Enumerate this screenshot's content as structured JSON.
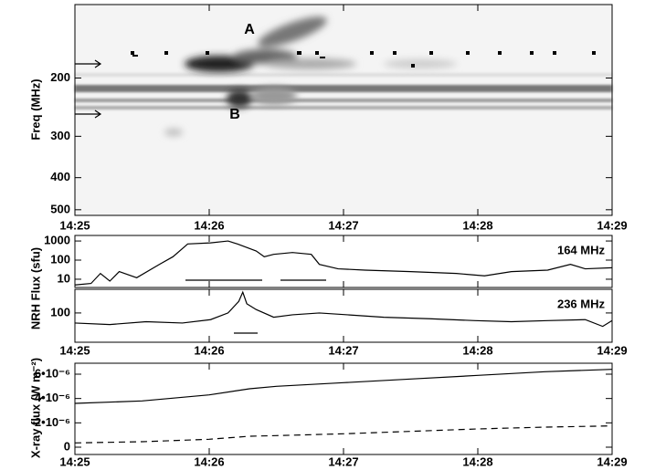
{
  "chart_data": [
    {
      "type": "spectrogram",
      "ylabel": "Freq (MHz)",
      "ylog": true,
      "y_inverted": true,
      "ylim": [
        120,
        520
      ],
      "yticks": [
        200,
        300,
        400,
        500
      ],
      "xlim": [
        865,
        869
      ],
      "xticks": [
        {
          "value": 865,
          "label": "14:25"
        },
        {
          "value": 866,
          "label": "14:26"
        },
        {
          "value": 867,
          "label": "14:27"
        },
        {
          "value": 868,
          "label": "14:28"
        },
        {
          "value": 869,
          "label": "14:29"
        }
      ],
      "annotations": [
        "A",
        "B"
      ]
    },
    {
      "type": "line",
      "ylabel": "NRH Flux (sfu)",
      "ylog": true,
      "channel": "164 MHz",
      "ylim": [
        3.7,
        1950
      ],
      "yticks": [
        10,
        100,
        1000
      ],
      "xlim": [
        865,
        869
      ],
      "xticks": [
        865,
        866,
        867,
        868,
        869
      ],
      "x": [
        865.0,
        865.12,
        865.19,
        865.26,
        865.33,
        865.46,
        865.63,
        865.73,
        865.84,
        866.01,
        866.14,
        866.21,
        866.35,
        866.41,
        866.48,
        866.62,
        866.76,
        866.82,
        866.96,
        867.16,
        867.5,
        867.84,
        868.05,
        868.25,
        868.52,
        868.69,
        868.8,
        869.0
      ],
      "series": [
        {
          "color": "#000000",
          "dash": "solid",
          "values": [
            5,
            6,
            20,
            8,
            25,
            12,
            60,
            150,
            700,
            800,
            1000,
            700,
            300,
            150,
            200,
            250,
            200,
            60,
            35,
            30,
            25,
            20,
            15,
            25,
            30,
            60,
            35,
            40
          ]
        }
      ]
    },
    {
      "type": "line",
      "ylog": true,
      "channel": "236 MHz",
      "ylim": [
        3,
        1700
      ],
      "yticks": [
        100
      ],
      "xlim": [
        865,
        869
      ],
      "xticks": [
        {
          "value": 865,
          "label": "14:25"
        },
        {
          "value": 866,
          "label": "14:26"
        },
        {
          "value": 867,
          "label": "14:27"
        },
        {
          "value": 868,
          "label": "14:28"
        },
        {
          "value": 869,
          "label": "14:29"
        }
      ],
      "x": [
        865.0,
        865.26,
        865.53,
        865.8,
        866.01,
        866.14,
        866.22,
        866.25,
        866.28,
        866.35,
        866.48,
        866.62,
        866.82,
        867.03,
        867.3,
        867.64,
        867.98,
        868.25,
        868.52,
        868.8,
        868.93,
        869.0
      ],
      "series": [
        {
          "color": "#000000",
          "dash": "solid",
          "values": [
            30,
            25,
            35,
            30,
            45,
            100,
            400,
            1200,
            300,
            150,
            60,
            80,
            100,
            80,
            60,
            50,
            40,
            35,
            40,
            45,
            20,
            40
          ]
        }
      ]
    },
    {
      "type": "line",
      "ylabel": "X-ray flux (W m⁻²)",
      "ylog": false,
      "ylim": [
        -6e-07,
        6.9e-06
      ],
      "yticks": [
        0,
        {
          "value": 2e-06,
          "label": "2•10⁻⁶"
        },
        {
          "value": 4e-06,
          "label": "4•10⁻⁶"
        },
        {
          "value": 6e-06,
          "label": "6•10⁻⁶"
        }
      ],
      "xlim": [
        865,
        869
      ],
      "xticks": [
        {
          "value": 865,
          "label": "14:25"
        },
        {
          "value": 866,
          "label": "14:26"
        },
        {
          "value": 867,
          "label": "14:27"
        },
        {
          "value": 868,
          "label": "14:28"
        },
        {
          "value": 869,
          "label": "14:29"
        }
      ],
      "x": [
        865.0,
        865.5,
        866.0,
        866.3,
        866.5,
        867.0,
        867.5,
        868.0,
        868.5,
        869.0
      ],
      "series": [
        {
          "color": "#000000",
          "dash": "solid",
          "values": [
            3.6e-06,
            3.8e-06,
            4.3e-06,
            4.8e-06,
            5e-06,
            5.3e-06,
            5.6e-06,
            5.9e-06,
            6.2e-06,
            6.4e-06
          ]
        },
        {
          "color": "#000000",
          "dash": "dashed",
          "values": [
            3.5e-07,
            4.5e-07,
            6.5e-07,
            9e-07,
            9.5e-07,
            1.1e-06,
            1.3e-06,
            1.5e-06,
            1.65e-06,
            1.75e-06
          ]
        }
      ]
    }
  ]
}
